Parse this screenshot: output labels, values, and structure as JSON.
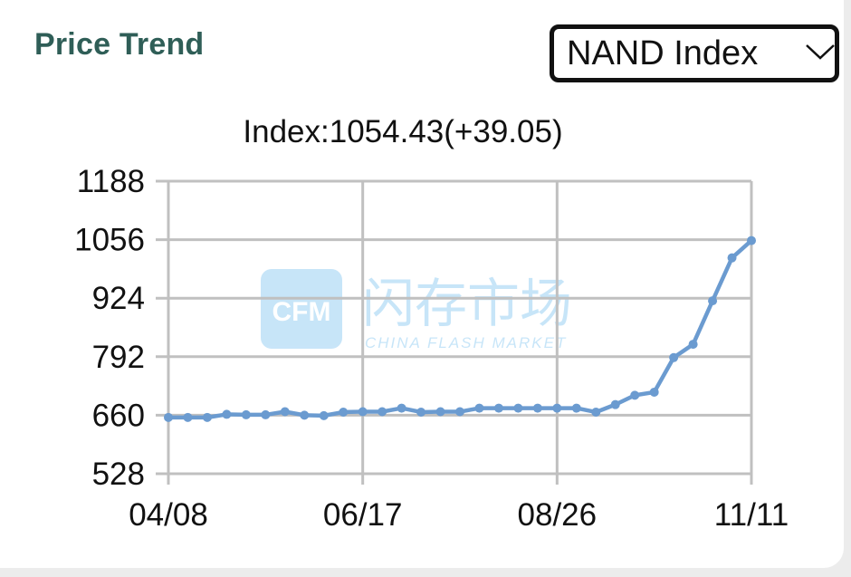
{
  "header": {
    "title": "Price Trend",
    "selector_value": "NAND Index"
  },
  "readout": {
    "label": "Index:",
    "value": "1054.43",
    "change": "(+39.05)"
  },
  "colors": {
    "title": "#2f5e57",
    "line": "#6b9bd0",
    "grid": "#c0c0c0"
  },
  "watermark": {
    "logo_text": "CFM",
    "name_cn": "闪存市场",
    "name_en": "CHINA FLASH MARKET"
  },
  "chart_data": {
    "type": "line",
    "title": "",
    "xlabel": "",
    "ylabel": "",
    "ylim": [
      528,
      1188
    ],
    "yticks": [
      1188,
      1056,
      924,
      792,
      660,
      528
    ],
    "xtick_labels": [
      "04/08",
      "06/17",
      "08/26",
      "11/11"
    ],
    "xtick_positions": [
      0,
      10,
      20,
      30
    ],
    "grid": true,
    "x": [
      0,
      1,
      2,
      3,
      4,
      5,
      6,
      7,
      8,
      9,
      10,
      11,
      12,
      13,
      14,
      15,
      16,
      17,
      18,
      19,
      20,
      21,
      22,
      23,
      24,
      25,
      26,
      27,
      28,
      29,
      30
    ],
    "series": [
      {
        "values": [
          655,
          655,
          655,
          662,
          661,
          661,
          668,
          660,
          659,
          667,
          668,
          668,
          676,
          667,
          668,
          668,
          676,
          676,
          676,
          676,
          676,
          676,
          667,
          684,
          705,
          712,
          790,
          820,
          918,
          1015,
          1054
        ]
      }
    ]
  }
}
